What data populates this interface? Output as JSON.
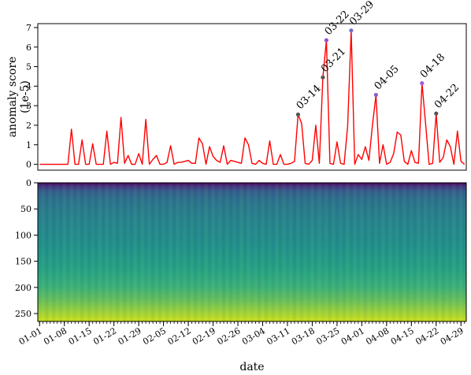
{
  "chart_data": [
    {
      "type": "line",
      "ylabel_line1": "anomaly score",
      "ylabel_line2": "(1e-5)",
      "xlabel": "",
      "x_start": "2023-01-01",
      "x_end": "2023-05-01",
      "ylim": [
        -0.3,
        7.2
      ],
      "yticks": [
        "0",
        "1",
        "2",
        "3",
        "4",
        "5",
        "6",
        "7"
      ],
      "grid": false,
      "series": [
        {
          "color": "#ff0000",
          "points": [
            [
              "2023-01-01",
              0
            ],
            [
              "2023-01-02",
              0
            ],
            [
              "2023-01-03",
              0
            ],
            [
              "2023-01-04",
              0
            ],
            [
              "2023-01-05",
              0
            ],
            [
              "2023-01-06",
              0
            ],
            [
              "2023-01-07",
              0
            ],
            [
              "2023-01-08",
              0
            ],
            [
              "2023-01-09",
              0
            ],
            [
              "2023-01-10",
              1.8
            ],
            [
              "2023-01-11",
              0
            ],
            [
              "2023-01-12",
              0
            ],
            [
              "2023-01-13",
              1.25
            ],
            [
              "2023-01-14",
              0
            ],
            [
              "2023-01-15",
              0
            ],
            [
              "2023-01-16",
              1.05
            ],
            [
              "2023-01-17",
              0
            ],
            [
              "2023-01-18",
              0
            ],
            [
              "2023-01-19",
              0
            ],
            [
              "2023-01-20",
              1.7
            ],
            [
              "2023-01-21",
              0
            ],
            [
              "2023-01-22",
              0.1
            ],
            [
              "2023-01-23",
              0.05
            ],
            [
              "2023-01-24",
              2.4
            ],
            [
              "2023-01-25",
              0.05
            ],
            [
              "2023-01-26",
              0.45
            ],
            [
              "2023-01-27",
              0
            ],
            [
              "2023-01-28",
              0
            ],
            [
              "2023-01-29",
              0.55
            ],
            [
              "2023-01-30",
              0
            ],
            [
              "2023-01-31",
              2.3
            ],
            [
              "2023-02-01",
              0
            ],
            [
              "2023-02-02",
              0.25
            ],
            [
              "2023-02-03",
              0.45
            ],
            [
              "2023-02-04",
              0
            ],
            [
              "2023-02-05",
              0
            ],
            [
              "2023-02-06",
              0.1
            ],
            [
              "2023-02-07",
              0.95
            ],
            [
              "2023-02-08",
              0
            ],
            [
              "2023-02-09",
              0.1
            ],
            [
              "2023-02-10",
              0.1
            ],
            [
              "2023-02-11",
              0.15
            ],
            [
              "2023-02-12",
              0.2
            ],
            [
              "2023-02-13",
              0.05
            ],
            [
              "2023-02-14",
              0.05
            ],
            [
              "2023-02-15",
              1.35
            ],
            [
              "2023-02-16",
              1.05
            ],
            [
              "2023-02-17",
              0
            ],
            [
              "2023-02-18",
              0.9
            ],
            [
              "2023-02-19",
              0.4
            ],
            [
              "2023-02-20",
              0.2
            ],
            [
              "2023-02-21",
              0.1
            ],
            [
              "2023-02-22",
              0.95
            ],
            [
              "2023-02-23",
              0
            ],
            [
              "2023-02-24",
              0.2
            ],
            [
              "2023-02-25",
              0.15
            ],
            [
              "2023-02-26",
              0.1
            ],
            [
              "2023-02-27",
              0.05
            ],
            [
              "2023-02-28",
              1.35
            ],
            [
              "2023-03-01",
              1.0
            ],
            [
              "2023-03-02",
              0.05
            ],
            [
              "2023-03-03",
              0
            ],
            [
              "2023-03-04",
              0.2
            ],
            [
              "2023-03-05",
              0.05
            ],
            [
              "2023-03-06",
              0
            ],
            [
              "2023-03-07",
              1.2
            ],
            [
              "2023-03-08",
              0
            ],
            [
              "2023-03-09",
              0
            ],
            [
              "2023-03-10",
              0.5
            ],
            [
              "2023-03-11",
              0
            ],
            [
              "2023-03-12",
              0
            ],
            [
              "2023-03-13",
              0.05
            ],
            [
              "2023-03-14",
              0.15
            ],
            [
              "2023-03-15",
              2.55
            ],
            [
              "2023-03-16",
              2.1
            ],
            [
              "2023-03-17",
              0.05
            ],
            [
              "2023-03-18",
              0
            ],
            [
              "2023-03-19",
              0.2
            ],
            [
              "2023-03-20",
              2.0
            ],
            [
              "2023-03-21",
              0.05
            ],
            [
              "2023-03-22",
              4.45
            ],
            [
              "2023-03-23",
              6.35
            ],
            [
              "2023-03-24",
              0.05
            ],
            [
              "2023-03-25",
              0
            ],
            [
              "2023-03-26",
              1.15
            ],
            [
              "2023-03-27",
              0.05
            ],
            [
              "2023-03-28",
              0
            ],
            [
              "2023-03-29",
              1.95
            ],
            [
              "2023-03-30",
              6.85
            ],
            [
              "2023-03-31",
              0
            ],
            [
              "2023-04-01",
              0.5
            ],
            [
              "2023-04-02",
              0.25
            ],
            [
              "2023-04-03",
              0.9
            ],
            [
              "2023-04-04",
              0.2
            ],
            [
              "2023-04-05",
              2.0
            ],
            [
              "2023-04-06",
              3.55
            ],
            [
              "2023-04-07",
              0.05
            ],
            [
              "2023-04-08",
              1.0
            ],
            [
              "2023-04-09",
              0
            ],
            [
              "2023-04-10",
              0.1
            ],
            [
              "2023-04-11",
              0.55
            ],
            [
              "2023-04-12",
              1.65
            ],
            [
              "2023-04-13",
              1.5
            ],
            [
              "2023-04-14",
              0.15
            ],
            [
              "2023-04-15",
              0
            ],
            [
              "2023-04-16",
              0.7
            ],
            [
              "2023-04-17",
              0.1
            ],
            [
              "2023-04-18",
              0.05
            ],
            [
              "2023-04-19",
              4.15
            ],
            [
              "2023-04-20",
              2.1
            ],
            [
              "2023-04-21",
              0
            ],
            [
              "2023-04-22",
              0.05
            ],
            [
              "2023-04-23",
              2.6
            ],
            [
              "2023-04-24",
              0.1
            ],
            [
              "2023-04-25",
              0.35
            ],
            [
              "2023-04-26",
              1.25
            ],
            [
              "2023-04-27",
              0.9
            ],
            [
              "2023-04-28",
              0
            ],
            [
              "2023-04-29",
              1.7
            ],
            [
              "2023-04-30",
              0.15
            ],
            [
              "2023-05-01",
              0
            ]
          ]
        }
      ],
      "annotations": [
        {
          "label": "03-14",
          "x": "2023-03-15",
          "y": 2.55,
          "marker_color": "#555555"
        },
        {
          "label": "03-21",
          "x": "2023-03-22",
          "y": 4.45,
          "marker_color": "#555555"
        },
        {
          "label": "03-22",
          "x": "2023-03-23",
          "y": 6.35,
          "marker_color": "#9a4fd4"
        },
        {
          "label": "03-29",
          "x": "2023-03-30",
          "y": 6.85,
          "marker_color": "#6c70c8"
        },
        {
          "label": "04-05",
          "x": "2023-04-06",
          "y": 3.55,
          "marker_color": "#8a5fc0"
        },
        {
          "label": "04-18",
          "x": "2023-04-19",
          "y": 4.15,
          "marker_color": "#a15cd6"
        },
        {
          "label": "04-22",
          "x": "2023-04-23",
          "y": 2.6,
          "marker_color": "#555555"
        }
      ]
    },
    {
      "type": "heatmap",
      "colormap": "viridis",
      "xlabel": "date",
      "x_start": "2023-01-01",
      "x_end": "2023-05-01",
      "ylim": [
        265,
        0
      ],
      "yticks": [
        "0",
        "50",
        "100",
        "150",
        "200",
        "250"
      ],
      "xticks": [
        "01-01",
        "01-08",
        "01-15",
        "01-22",
        "01-29",
        "02-05",
        "02-12",
        "02-19",
        "02-26",
        "03-04",
        "03-11",
        "03-18",
        "03-25",
        "04-01",
        "04-08",
        "04-15",
        "04-22",
        "04-29"
      ],
      "grid": false
    }
  ]
}
